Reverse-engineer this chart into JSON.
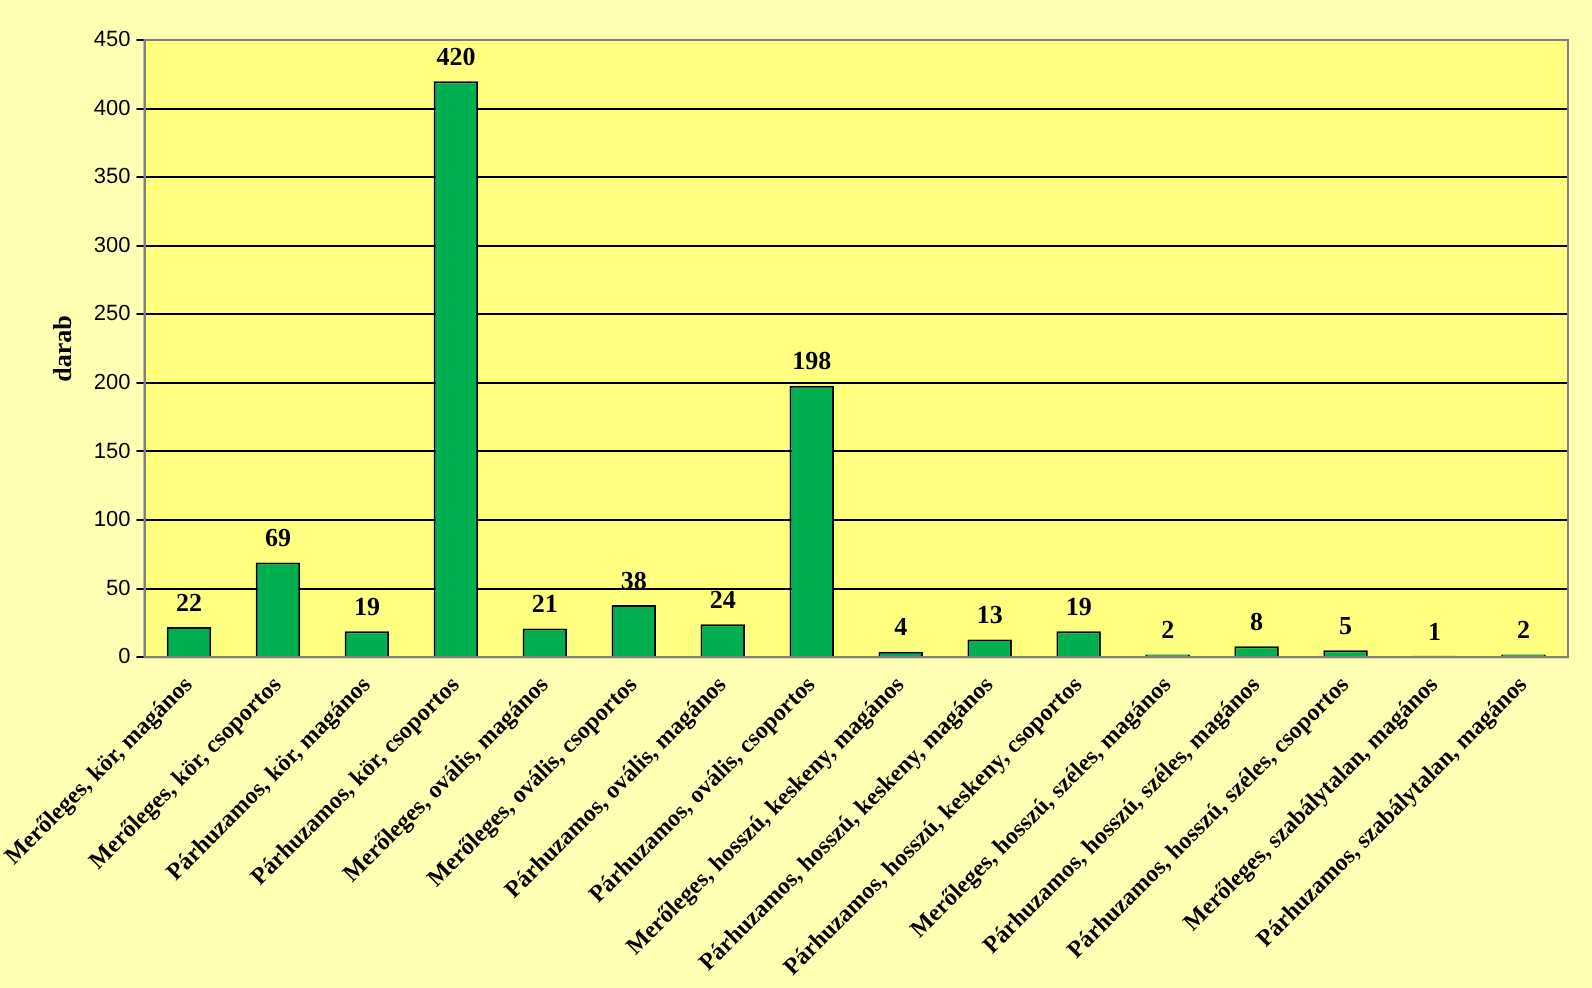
{
  "chart_data": {
    "type": "bar",
    "ylabel": "darab",
    "categories": [
      "Merőleges, kör, magános",
      "Merőleges, kör, csoportos",
      "Párhuzamos, kör, magános",
      "Párhuzamos, kör, csoportos",
      "Merőleges, ovális, magános",
      "Merőleges, ovális, csoportos",
      "Párhuzamos, ovális, magános",
      "Párhuzamos, ovális, csoportos",
      "Merőleges, hosszú, keskeny, magános",
      "Párhuzamos, hosszú, keskeny, magános",
      "Párhuzamos, hosszú, keskeny, csoportos",
      "Merőleges, hosszú, széles, magános",
      "Párhuzamos, hosszú, széles, magános",
      "Párhuzamos, hosszú, széles, csoportos",
      "Merőleges, szabálytalan, magános",
      "Párhuzamos, szabálytalan, magános"
    ],
    "values": [
      22,
      69,
      19,
      420,
      21,
      38,
      24,
      198,
      4,
      13,
      19,
      2,
      8,
      5,
      1,
      2
    ],
    "color": "#00b050",
    "ylim": [
      0,
      450
    ],
    "yticks": [
      0,
      50,
      100,
      150,
      200,
      250,
      300,
      350,
      400,
      450
    ],
    "grid": "y",
    "data_labels": true
  }
}
